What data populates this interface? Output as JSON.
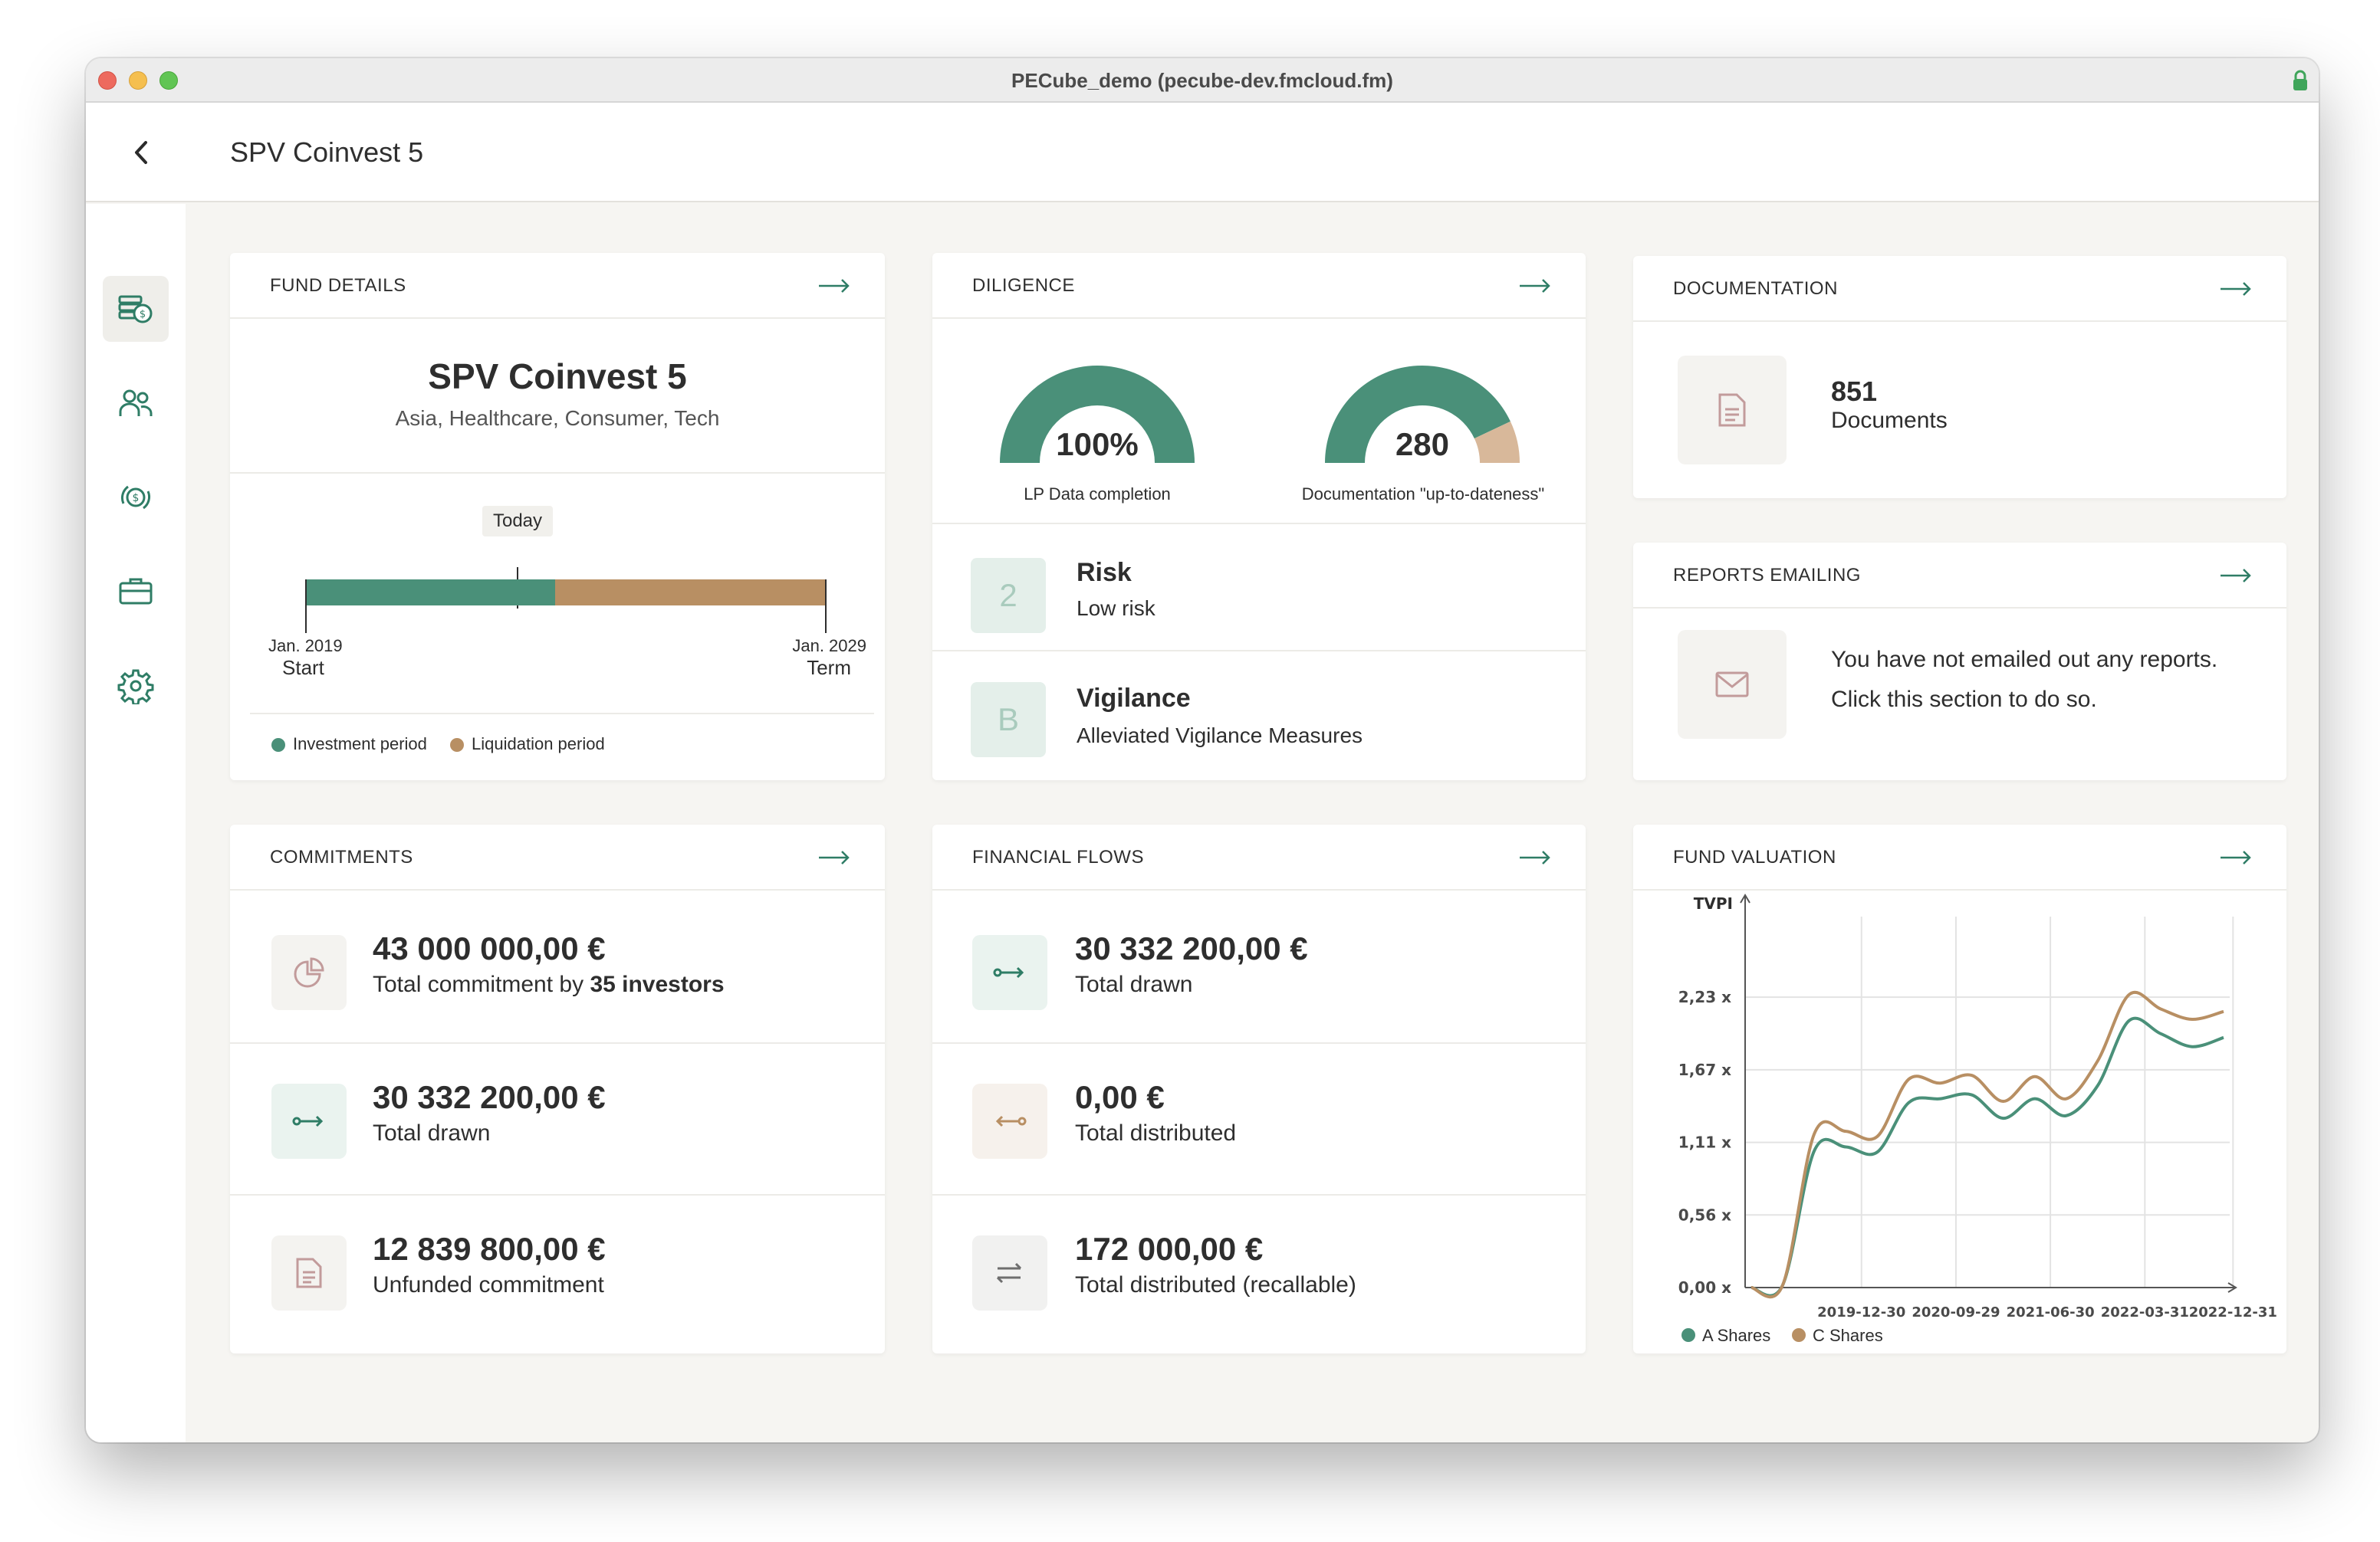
{
  "window": {
    "title": "PECube_demo (pecube-dev.fmcloud.fm)"
  },
  "header": {
    "title": "SPV Coinvest 5"
  },
  "sidebar": {
    "items": [
      "funds-icon",
      "investors-icon",
      "cashflow-icon",
      "portfolio-icon",
      "settings-icon"
    ]
  },
  "fund_details": {
    "section_title": "FUND DETAILS",
    "name": "SPV Coinvest 5",
    "tags": "Asia, Healthcare, Consumer, Tech",
    "today_label": "Today",
    "start_date": "Jan. 2019",
    "start_label": "Start",
    "end_date": "Jan. 2029",
    "end_label": "Term",
    "investment_fraction": 0.48,
    "legend_investment": "Investment period",
    "legend_liquidation": "Liquidation period"
  },
  "diligence": {
    "section_title": "DILIGENCE",
    "gauge1_value": "100%",
    "gauge1_label": "LP Data completion",
    "gauge1_fraction": 1.0,
    "gauge2_value": "280",
    "gauge2_label": "Documentation \"up-to-dateness\"",
    "gauge2_fraction": 0.86,
    "risk_badge": "2",
    "risk_title": "Risk",
    "risk_value": "Low risk",
    "vigilance_badge": "B",
    "vigilance_title": "Vigilance",
    "vigilance_value": "Alleviated Vigilance Measures"
  },
  "documentation": {
    "section_title": "DOCUMENTATION",
    "count": "851",
    "label": "Documents"
  },
  "reports": {
    "section_title": "REPORTS EMAILING",
    "line1": "You have not emailed out any reports.",
    "line2": "Click this section to do so."
  },
  "commitments": {
    "section_title": "COMMITMENTS",
    "total_value": "43 000 000,00 €",
    "total_label_prefix": "Total commitment by",
    "total_label_bold": "35 investors",
    "drawn_value": "30 332 200,00 €",
    "drawn_label": "Total drawn",
    "unfunded_value": "12 839 800,00 €",
    "unfunded_label": "Unfunded commitment"
  },
  "financial_flows": {
    "section_title": "FINANCIAL FLOWS",
    "drawn_value": "30 332 200,00 €",
    "drawn_label": "Total drawn",
    "distributed_value": "0,00 €",
    "distributed_label": "Total distributed",
    "recallable_value": "172 000,00 €",
    "recallable_label": "Total distributed (recallable)"
  },
  "fund_valuation": {
    "section_title": "FUND VALUATION",
    "colors": {
      "a_shares": "#4a9079",
      "c_shares": "#b88f63"
    }
  },
  "chart_data": {
    "type": "line",
    "ylabel": "TVPI",
    "y_ticks": [
      "0,00 x",
      "0,56 x",
      "1,11 x",
      "1,67 x",
      "2,23 x"
    ],
    "x_ticks": [
      "2019-12-30",
      "2020-09-29",
      "2021-06-30",
      "2022-03-31",
      "2022-12-31"
    ],
    "ylim": [
      0,
      2.79
    ],
    "grid": true,
    "legend": "bottom-left",
    "x": [
      "2019-03",
      "2019-06",
      "2019-09",
      "2019-12",
      "2020-03",
      "2020-06",
      "2020-09",
      "2020-12",
      "2021-03",
      "2021-06",
      "2021-09",
      "2021-12",
      "2022-03",
      "2022-06",
      "2022-09",
      "2022-12"
    ],
    "series": [
      {
        "name": "A Shares",
        "values": [
          0.0,
          0.02,
          1.05,
          1.08,
          1.04,
          1.42,
          1.45,
          1.48,
          1.3,
          1.45,
          1.32,
          1.55,
          2.05,
          1.95,
          1.85,
          1.92
        ]
      },
      {
        "name": "C Shares",
        "values": [
          0.0,
          0.02,
          1.18,
          1.2,
          1.16,
          1.6,
          1.57,
          1.63,
          1.43,
          1.62,
          1.45,
          1.74,
          2.25,
          2.14,
          2.06,
          2.12
        ]
      }
    ]
  }
}
